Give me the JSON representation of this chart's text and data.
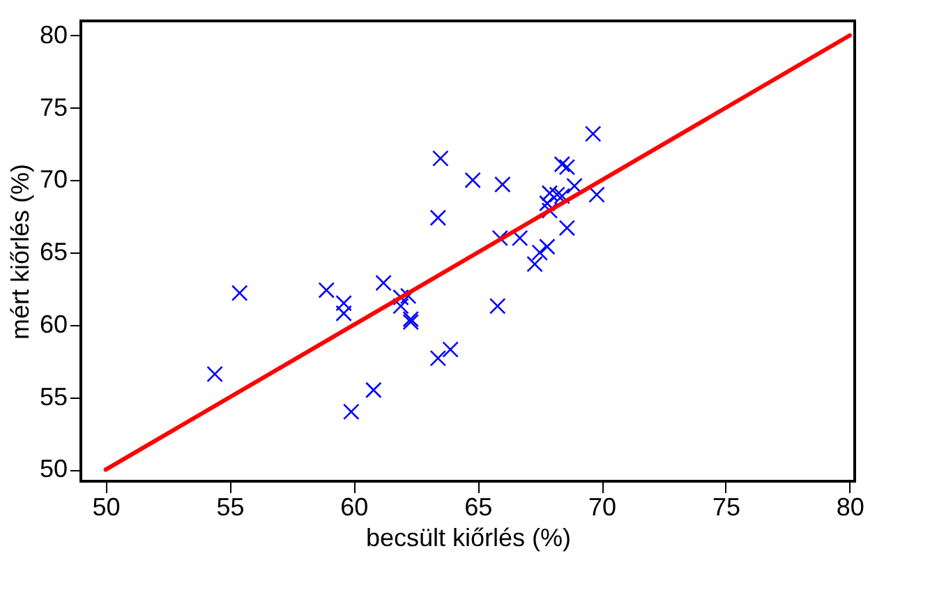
{
  "chart_data": {
    "type": "scatter",
    "xlabel": "becsült kiőrlés (%)",
    "ylabel": "mért kiőrlés (%)",
    "xlim": [
      49,
      80.2
    ],
    "ylim": [
      49.2,
      81
    ],
    "xticks": [
      50,
      55,
      60,
      65,
      70,
      75,
      80
    ],
    "yticks": [
      50,
      55,
      60,
      65,
      70,
      75,
      80
    ],
    "grid": false,
    "series": [
      {
        "type": "scatter",
        "color": "#0000ff",
        "marker": "cross",
        "x": [
          54.4,
          55.4,
          58.9,
          59.6,
          59.6,
          59.9,
          60.8,
          61.2,
          61.9,
          61.9,
          62.2,
          62.3,
          62.3,
          63.4,
          63.9,
          65.8,
          69.65,
          63.5,
          64.8,
          66.0,
          68.4,
          68.6,
          63.4,
          67.9,
          68.2,
          68.4,
          68.9,
          67.8,
          67.9,
          69.8,
          68.6,
          65.9,
          66.7,
          67.8,
          67.5,
          67.3
        ],
        "values": [
          56.6,
          62.2,
          62.4,
          61.5,
          60.8,
          54.0,
          55.5,
          62.9,
          61.9,
          61.3,
          62.0,
          60.4,
          60.2,
          57.7,
          58.3,
          61.3,
          73.2,
          71.5,
          70.0,
          69.7,
          71.1,
          70.9,
          67.4,
          69.1,
          69.0,
          68.9,
          69.6,
          68.4,
          67.9,
          69.0,
          66.7,
          66.0,
          66.0,
          65.4,
          65.0,
          64.2
        ]
      },
      {
        "type": "line",
        "color": "#ff0000",
        "marker": "none",
        "line_style": "solid",
        "x": [
          50,
          80
        ],
        "values": [
          50,
          80
        ]
      }
    ]
  }
}
